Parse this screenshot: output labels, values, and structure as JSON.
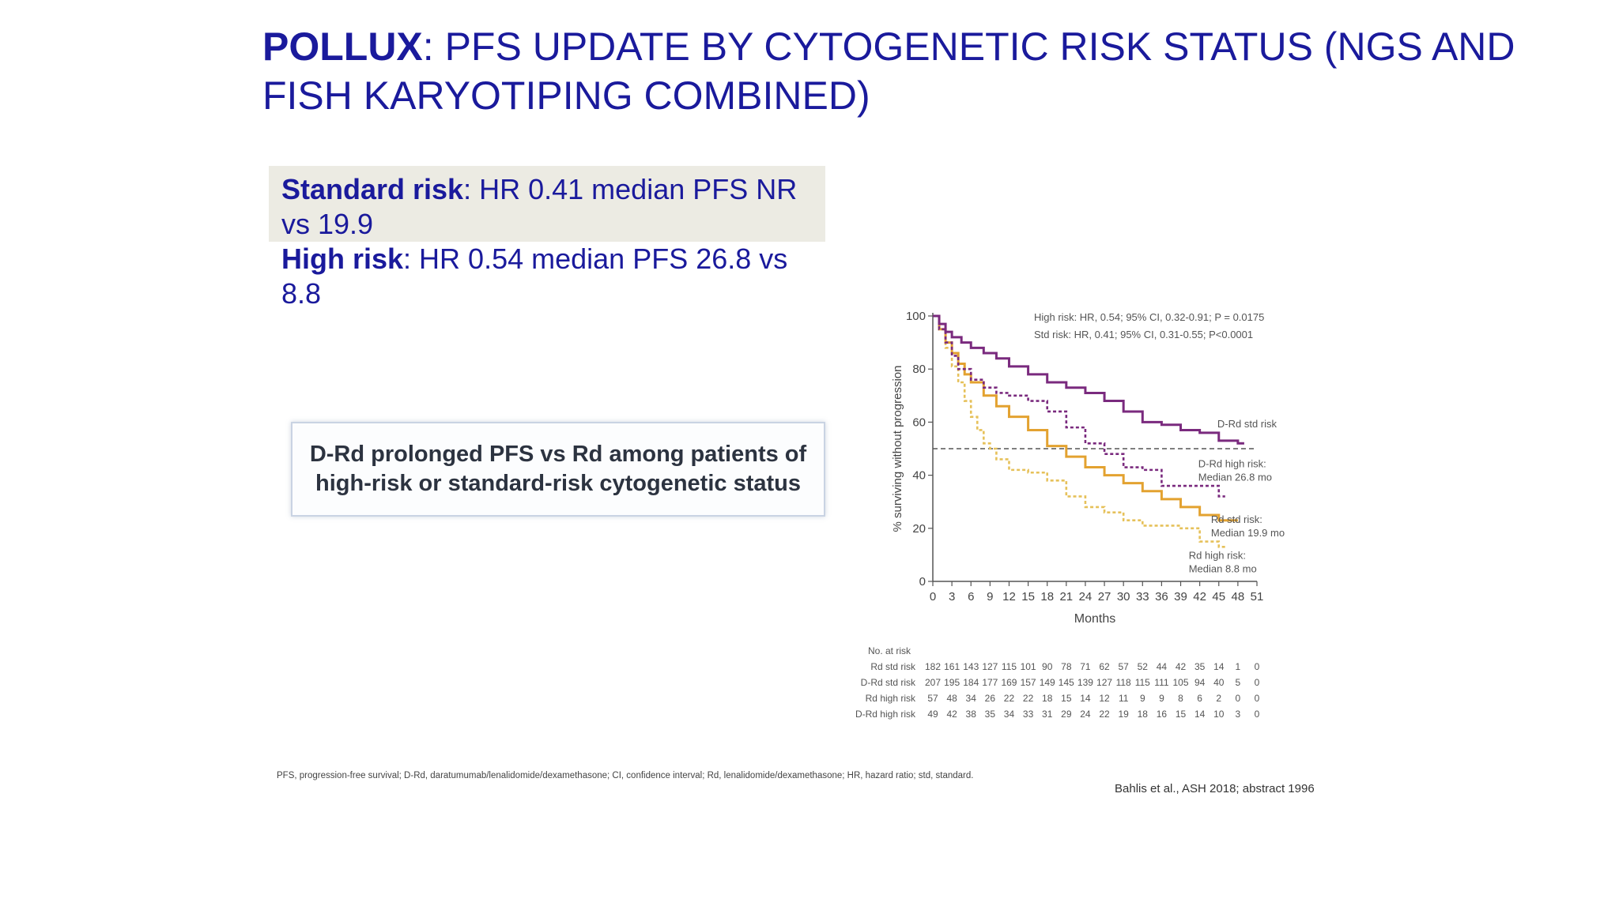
{
  "title": {
    "bold": "POLLUX",
    "rest": ": PFS UPDATE BY CYTOGENETIC RISK STATUS (NGS AND FISH KARYOTIPING COMBINED)"
  },
  "standard_risk": {
    "label": "Standard risk",
    "text": ": HR 0.41 median PFS NR vs 19.9"
  },
  "high_risk": {
    "label": "High risk",
    "text": ": HR 0.54 median PFS 26.8 vs 8.8"
  },
  "conclusion": "D-Rd prolonged PFS vs Rd among patients of high-risk or standard-risk cytogenetic status",
  "abbreviations": "PFS, progression-free survival; D-Rd, daratumumab/lenalidomide/dexamethasone; CI, confidence interval; Rd, lenalidomide/dexamethasone; HR, hazard ratio; std, standard.",
  "citation": "Bahlis et al., ASH 2018; abstract 1996",
  "colors": {
    "title": "#1a1a9c",
    "drd_std": "#7a2a7e",
    "drd_high": "#7a2a7e",
    "rd_std": "#e3a230",
    "rd_high": "#e6c15a",
    "median_line": "#555555"
  },
  "chart_data": {
    "type": "line",
    "title": "",
    "xlabel": "Months",
    "ylabel": "% surviving without progression",
    "xlim": [
      0,
      51
    ],
    "ylim": [
      0,
      100
    ],
    "xticks": [
      0,
      3,
      6,
      9,
      12,
      15,
      18,
      21,
      24,
      27,
      30,
      33,
      36,
      39,
      42,
      45,
      48,
      51
    ],
    "yticks": [
      0,
      20,
      40,
      60,
      80,
      100
    ],
    "reference_line": {
      "y": 50,
      "style": "dashed"
    },
    "hr_annotations": [
      "High risk: HR, 0.54; 95% CI, 0.32-0.91; P = 0.0175",
      "Std risk: HR, 0.41; 95% CI, 0.31-0.55; P<0.0001"
    ],
    "series": [
      {
        "key": "drd_std",
        "name": "D-Rd std risk",
        "label_lines": [
          "D-Rd std risk"
        ],
        "style": "solid",
        "x": [
          0,
          1,
          2,
          3,
          4.5,
          6,
          8,
          10,
          12,
          15,
          18,
          21,
          24,
          27,
          30,
          33,
          36,
          39,
          42,
          45,
          48,
          49
        ],
        "y": [
          100,
          97,
          94,
          92,
          90,
          88,
          86,
          84,
          81,
          78,
          75,
          73,
          71,
          68,
          64,
          60,
          59,
          57,
          56,
          53,
          52,
          52
        ]
      },
      {
        "key": "drd_high",
        "name": "D-Rd high risk",
        "label_lines": [
          "D-Rd high risk:",
          "Median 26.8 mo"
        ],
        "style": "dashed",
        "x": [
          0,
          1,
          2,
          3,
          4,
          6,
          8,
          10,
          12,
          15,
          18,
          21,
          24,
          27,
          30,
          33,
          36,
          42,
          45,
          46
        ],
        "y": [
          100,
          95,
          90,
          85,
          80,
          76,
          73,
          71,
          70,
          68,
          64,
          58,
          52,
          48,
          43,
          42,
          36,
          36,
          32,
          32
        ]
      },
      {
        "key": "rd_std",
        "name": "Rd std risk",
        "label_lines": [
          "Rd std risk:",
          "Median 19.9 mo"
        ],
        "style": "solid",
        "x": [
          0,
          1,
          2,
          3,
          4,
          5,
          6,
          8,
          10,
          12,
          15,
          18,
          21,
          24,
          27,
          30,
          33,
          36,
          39,
          42,
          45,
          48
        ],
        "y": [
          100,
          95,
          90,
          86,
          82,
          78,
          75,
          70,
          66,
          62,
          57,
          51,
          47,
          43,
          40,
          37,
          34,
          31,
          28,
          25,
          23,
          23
        ]
      },
      {
        "key": "rd_high",
        "name": "Rd high risk",
        "label_lines": [
          "Rd high risk:",
          "Median 8.8 mo"
        ],
        "style": "dashed",
        "x": [
          0,
          1,
          2,
          3,
          4,
          5,
          6,
          7,
          8,
          9,
          10,
          12,
          15,
          18,
          21,
          24,
          27,
          30,
          33,
          36,
          39,
          42,
          45,
          46
        ],
        "y": [
          100,
          95,
          88,
          81,
          75,
          68,
          62,
          57,
          52,
          50,
          46,
          42,
          41,
          38,
          32,
          28,
          26,
          23,
          21,
          21,
          20,
          15,
          13,
          13
        ]
      }
    ],
    "at_risk": {
      "header": "No. at risk",
      "rows": [
        {
          "label": "Rd std risk",
          "values": [
            "182",
            "161",
            "143",
            "127",
            "115",
            "101",
            "90",
            "78",
            "71",
            "62",
            "57",
            "52",
            "44",
            "42",
            "35",
            "14",
            "1",
            "0"
          ]
        },
        {
          "label": "D-Rd std risk",
          "values": [
            "207",
            "195",
            "184",
            "177",
            "169",
            "157",
            "149",
            "145",
            "139",
            "127",
            "118",
            "115",
            "111",
            "105",
            "94",
            "40",
            "5",
            "0"
          ]
        },
        {
          "label": "Rd high risk",
          "values": [
            "57",
            "48",
            "34",
            "26",
            "22",
            "22",
            "18",
            "15",
            "14",
            "12",
            "11",
            "9",
            "9",
            "8",
            "6",
            "2",
            "0",
            "0"
          ]
        },
        {
          "label": "D-Rd high risk",
          "values": [
            "49",
            "42",
            "38",
            "35",
            "34",
            "33",
            "31",
            "29",
            "24",
            "22",
            "19",
            "18",
            "16",
            "15",
            "14",
            "10",
            "3",
            "0"
          ]
        }
      ]
    }
  }
}
